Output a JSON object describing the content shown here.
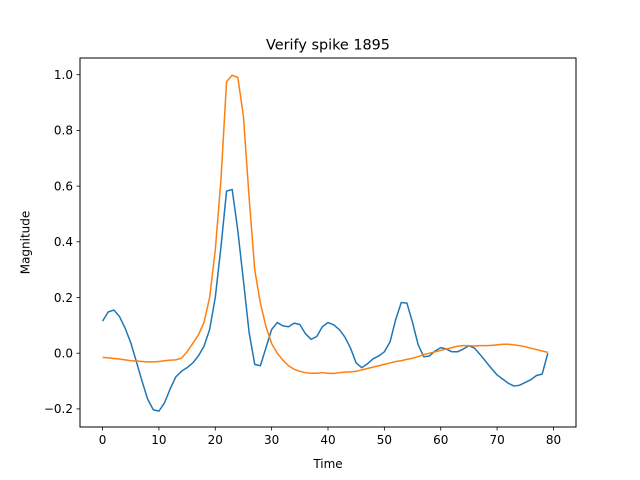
{
  "chart_data": {
    "type": "line",
    "title": "Verify spike 1895",
    "xlabel": "Time",
    "ylabel": "Magnitude",
    "xlim": [
      -4,
      84
    ],
    "ylim": [
      -0.265,
      1.06
    ],
    "xticks": [
      0,
      10,
      20,
      30,
      40,
      50,
      60,
      70,
      80
    ],
    "yticks": [
      -0.2,
      0.0,
      0.2,
      0.4,
      0.6,
      0.8,
      1.0
    ],
    "ytick_labels": [
      "−0.2",
      "0.0",
      "0.2",
      "0.4",
      "0.6",
      "0.8",
      "1.0"
    ],
    "grid": false,
    "x": [
      0,
      1,
      2,
      3,
      4,
      5,
      6,
      7,
      8,
      9,
      10,
      11,
      12,
      13,
      14,
      15,
      16,
      17,
      18,
      19,
      20,
      21,
      22,
      23,
      24,
      25,
      26,
      27,
      28,
      29,
      30,
      31,
      32,
      33,
      34,
      35,
      36,
      37,
      38,
      39,
      40,
      41,
      42,
      43,
      44,
      45,
      46,
      47,
      48,
      49,
      50,
      51,
      52,
      53,
      54,
      55,
      56,
      57,
      58,
      59,
      60,
      61,
      62,
      63,
      64,
      65,
      66,
      67,
      68,
      69,
      70,
      71,
      72,
      73,
      74,
      75,
      76,
      77,
      78,
      79
    ],
    "series": [
      {
        "color": "#1f77b4",
        "values": [
          0.115,
          0.148,
          0.155,
          0.132,
          0.09,
          0.038,
          -0.03,
          -0.1,
          -0.165,
          -0.203,
          -0.208,
          -0.178,
          -0.128,
          -0.085,
          -0.065,
          -0.052,
          -0.035,
          -0.01,
          0.025,
          0.085,
          0.2,
          0.38,
          0.582,
          0.588,
          0.44,
          0.26,
          0.075,
          -0.04,
          -0.045,
          0.02,
          0.085,
          0.11,
          0.098,
          0.095,
          0.108,
          0.103,
          0.07,
          0.05,
          0.06,
          0.095,
          0.11,
          0.102,
          0.085,
          0.058,
          0.018,
          -0.035,
          -0.052,
          -0.038,
          -0.02,
          -0.01,
          0.005,
          0.04,
          0.12,
          0.182,
          0.18,
          0.11,
          0.03,
          -0.013,
          -0.01,
          0.008,
          0.02,
          0.015,
          0.005,
          0.005,
          0.015,
          0.027,
          0.018,
          -0.005,
          -0.03,
          -0.055,
          -0.078,
          -0.093,
          -0.108,
          -0.118,
          -0.115,
          -0.105,
          -0.095,
          -0.08,
          -0.075,
          0.0
        ]
      },
      {
        "color": "#ff7f0e",
        "values": [
          -0.015,
          -0.017,
          -0.019,
          -0.021,
          -0.024,
          -0.027,
          -0.028,
          -0.03,
          -0.031,
          -0.031,
          -0.03,
          -0.027,
          -0.025,
          -0.024,
          -0.018,
          0.005,
          0.035,
          0.065,
          0.11,
          0.2,
          0.37,
          0.62,
          0.975,
          0.998,
          0.99,
          0.85,
          0.56,
          0.3,
          0.18,
          0.095,
          0.035,
          0.0,
          -0.025,
          -0.045,
          -0.058,
          -0.065,
          -0.07,
          -0.072,
          -0.072,
          -0.07,
          -0.072,
          -0.073,
          -0.07,
          -0.068,
          -0.067,
          -0.065,
          -0.06,
          -0.055,
          -0.05,
          -0.045,
          -0.04,
          -0.035,
          -0.03,
          -0.027,
          -0.022,
          -0.018,
          -0.012,
          -0.005,
          0.0,
          0.005,
          0.01,
          0.015,
          0.02,
          0.025,
          0.027,
          0.027,
          0.026,
          0.027,
          0.027,
          0.028,
          0.03,
          0.032,
          0.032,
          0.03,
          0.027,
          0.023,
          0.018,
          0.013,
          0.008,
          0.003
        ]
      }
    ]
  }
}
